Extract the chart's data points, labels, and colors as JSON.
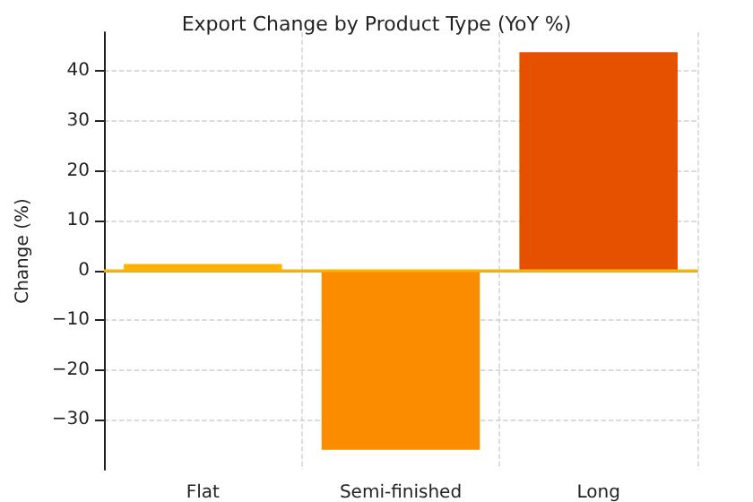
{
  "chart_data": {
    "type": "bar",
    "title": "Export Change by Product Type (YoY %)",
    "ylabel": "Change (%)",
    "categories": [
      "Flat",
      "Semi-finished",
      "Long"
    ],
    "values": [
      1.3,
      -36,
      43.8
    ],
    "colors": [
      "#ffb300",
      "#fb8c00",
      "#e65100"
    ],
    "ylim": [
      -40,
      47.8
    ],
    "yticks": [
      -30,
      -20,
      -10,
      0,
      10,
      20,
      30,
      40
    ],
    "grid": true,
    "ref_lines": [
      {
        "axis": "y",
        "value": 0,
        "color": "#ffb300"
      }
    ]
  }
}
